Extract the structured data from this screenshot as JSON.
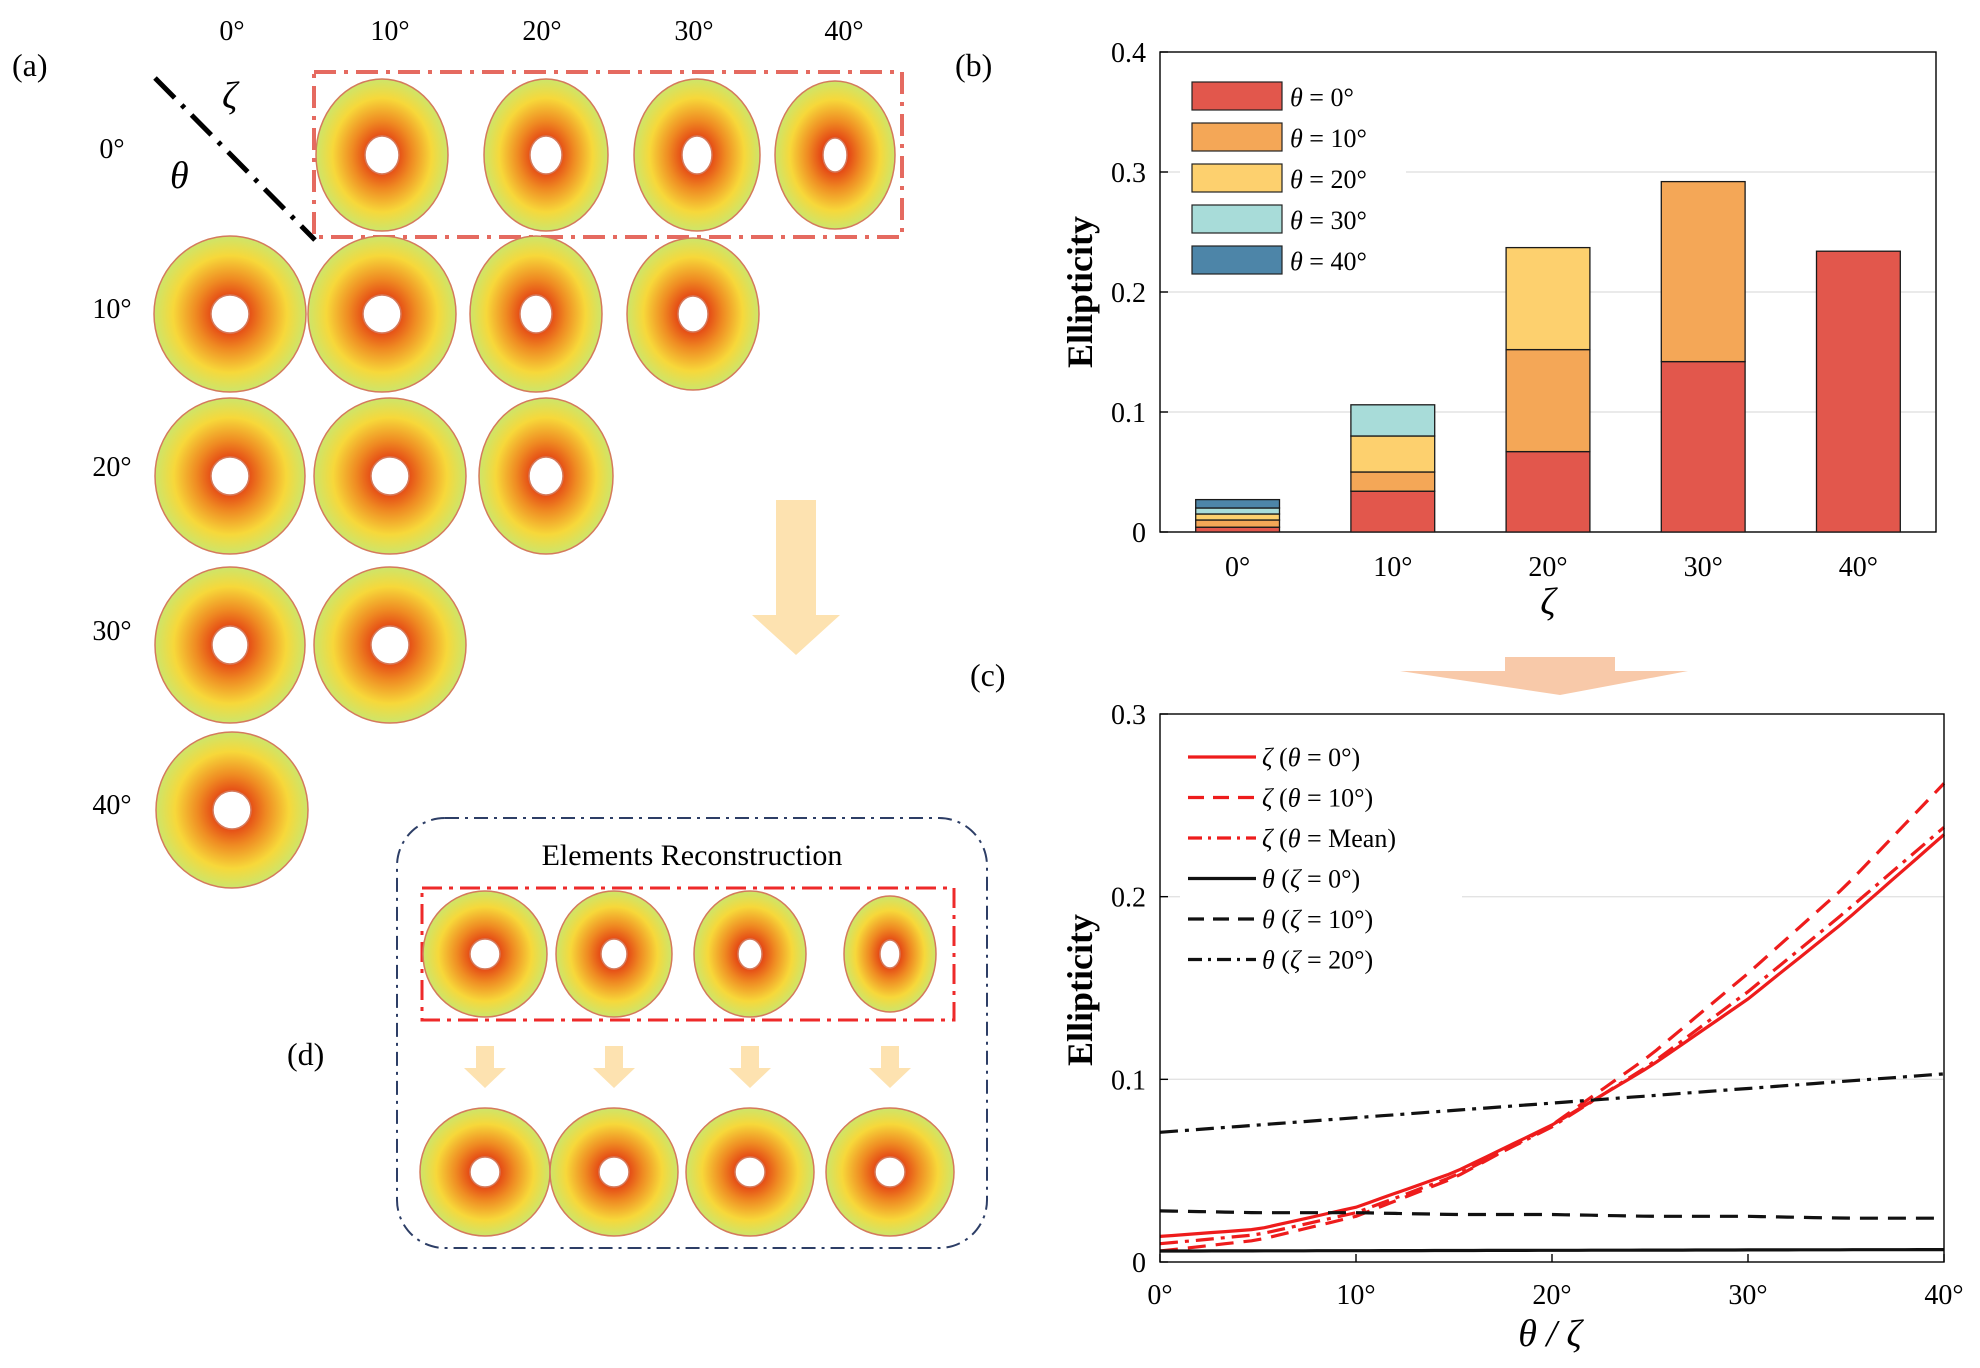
{
  "panels": {
    "a": {
      "label": "(a)",
      "col_header_symbol": "ζ",
      "row_header_symbol": "θ",
      "col_labels": [
        "0°",
        "10°",
        "20°",
        "30°",
        "40°"
      ],
      "row_labels": [
        "0°",
        "10°",
        "20°",
        "30°",
        "40°"
      ]
    },
    "b": {
      "label": "(b)"
    },
    "c": {
      "label": "(c)"
    },
    "d": {
      "label": "(d)",
      "title": "Elements Reconstruction"
    }
  },
  "colors": {
    "red": "#e2574c",
    "orange": "#f4a757",
    "yellow": "#fdd06e",
    "cyan": "#a8dcd9",
    "blue": "#4d85a8",
    "arrow": "#fde2b0",
    "arrow_c": "#f8c9a9",
    "frame": "#e56a60",
    "box": "#2d3e66"
  },
  "chart_data": [
    {
      "type": "bar",
      "stacked": true,
      "title": "",
      "xlabel": "ζ",
      "ylabel": "Ellipticity",
      "ylim": [
        0,
        0.4
      ],
      "yticks": [
        0,
        0.1,
        0.2,
        0.3,
        0.4
      ],
      "ytick_labels": [
        "0",
        "0.1",
        "0.2",
        "0.3",
        "0.4"
      ],
      "categories": [
        "0°",
        "10°",
        "20°",
        "30°",
        "40°"
      ],
      "legend_position": "top-left",
      "series": [
        {
          "name": "θ = 0°",
          "legend": [
            "θ",
            " = 0°"
          ],
          "color": "#e2574c",
          "values": [
            0.004,
            0.034,
            0.067,
            0.142,
            0.234
          ]
        },
        {
          "name": "θ = 10°",
          "legend": [
            "θ",
            " = 10°"
          ],
          "color": "#f4a757",
          "values": [
            0.006,
            0.016,
            0.085,
            0.15,
            0.0
          ]
        },
        {
          "name": "θ = 20°",
          "legend": [
            "θ",
            " = 20°"
          ],
          "color": "#fdd06e",
          "values": [
            0.005,
            0.03,
            0.085,
            0.0,
            0.0
          ]
        },
        {
          "name": "θ = 30°",
          "legend": [
            "θ",
            " = 30°"
          ],
          "color": "#a8dcd9",
          "values": [
            0.005,
            0.026,
            0.0,
            0.0,
            0.0
          ]
        },
        {
          "name": "θ = 40°",
          "legend": [
            "θ",
            " = 40°"
          ],
          "color": "#4d85a8",
          "values": [
            0.007,
            0.0,
            0.0,
            0.0,
            0.0
          ]
        }
      ]
    },
    {
      "type": "line",
      "title": "",
      "xlabel": "θ / ζ",
      "ylabel": "Ellipticity",
      "xlim": [
        0,
        40
      ],
      "ylim": [
        0,
        0.3
      ],
      "xticks": [
        0,
        10,
        20,
        30,
        40
      ],
      "xtick_labels": [
        "0°",
        "10°",
        "20°",
        "30°",
        "40°"
      ],
      "yticks": [
        0,
        0.1,
        0.2,
        0.3
      ],
      "ytick_labels": [
        "0",
        "0.1",
        "0.2",
        "0.3"
      ],
      "legend_position": "top-left",
      "x": [
        0,
        5,
        10,
        15,
        20,
        25,
        30,
        35,
        40
      ],
      "series": [
        {
          "name": "ζ (θ = 0°)",
          "legend": [
            "ζ",
            " (",
            "θ",
            " = 0°)"
          ],
          "color": "#ee1c1c",
          "dash": "solid",
          "values": [
            0.014,
            0.018,
            0.03,
            0.049,
            0.075,
            0.107,
            0.144,
            0.187,
            0.234
          ]
        },
        {
          "name": "ζ (θ = 10°)",
          "legend": [
            "ζ",
            " (",
            "θ",
            " = 10°)"
          ],
          "color": "#ee1c1c",
          "dash": "dash",
          "values": [
            0.006,
            0.012,
            0.025,
            0.046,
            0.075,
            0.113,
            0.158,
            0.206,
            0.262
          ]
        },
        {
          "name": "ζ (θ = Mean)",
          "legend": [
            "ζ",
            " (",
            "θ",
            " = Mean)"
          ],
          "color": "#ee1c1c",
          "dash": "dashdot",
          "values": [
            0.01,
            0.015,
            0.027,
            0.047,
            0.074,
            0.108,
            0.148,
            0.192,
            0.238
          ]
        },
        {
          "name": "θ (ζ = 0°)",
          "legend": [
            "θ",
            " (",
            "ζ",
            " = 0°)"
          ],
          "color": "#111111",
          "dash": "solid",
          "values": [
            0.006,
            0.0061,
            0.0062,
            0.0063,
            0.0064,
            0.0065,
            0.0066,
            0.0067,
            0.0068
          ]
        },
        {
          "name": "θ (ζ = 10°)",
          "legend": [
            "θ",
            " (",
            "ζ",
            " = 10°)"
          ],
          "color": "#111111",
          "dash": "dash",
          "values": [
            0.028,
            0.027,
            0.027,
            0.026,
            0.026,
            0.025,
            0.025,
            0.024,
            0.024
          ]
        },
        {
          "name": "θ (ζ = 20°)",
          "legend": [
            "θ",
            " (",
            "ζ",
            " = 20°)"
          ],
          "color": "#111111",
          "dash": "dashdot",
          "values": [
            0.071,
            0.075,
            0.079,
            0.083,
            0.087,
            0.091,
            0.095,
            0.099,
            0.103
          ]
        }
      ]
    }
  ]
}
